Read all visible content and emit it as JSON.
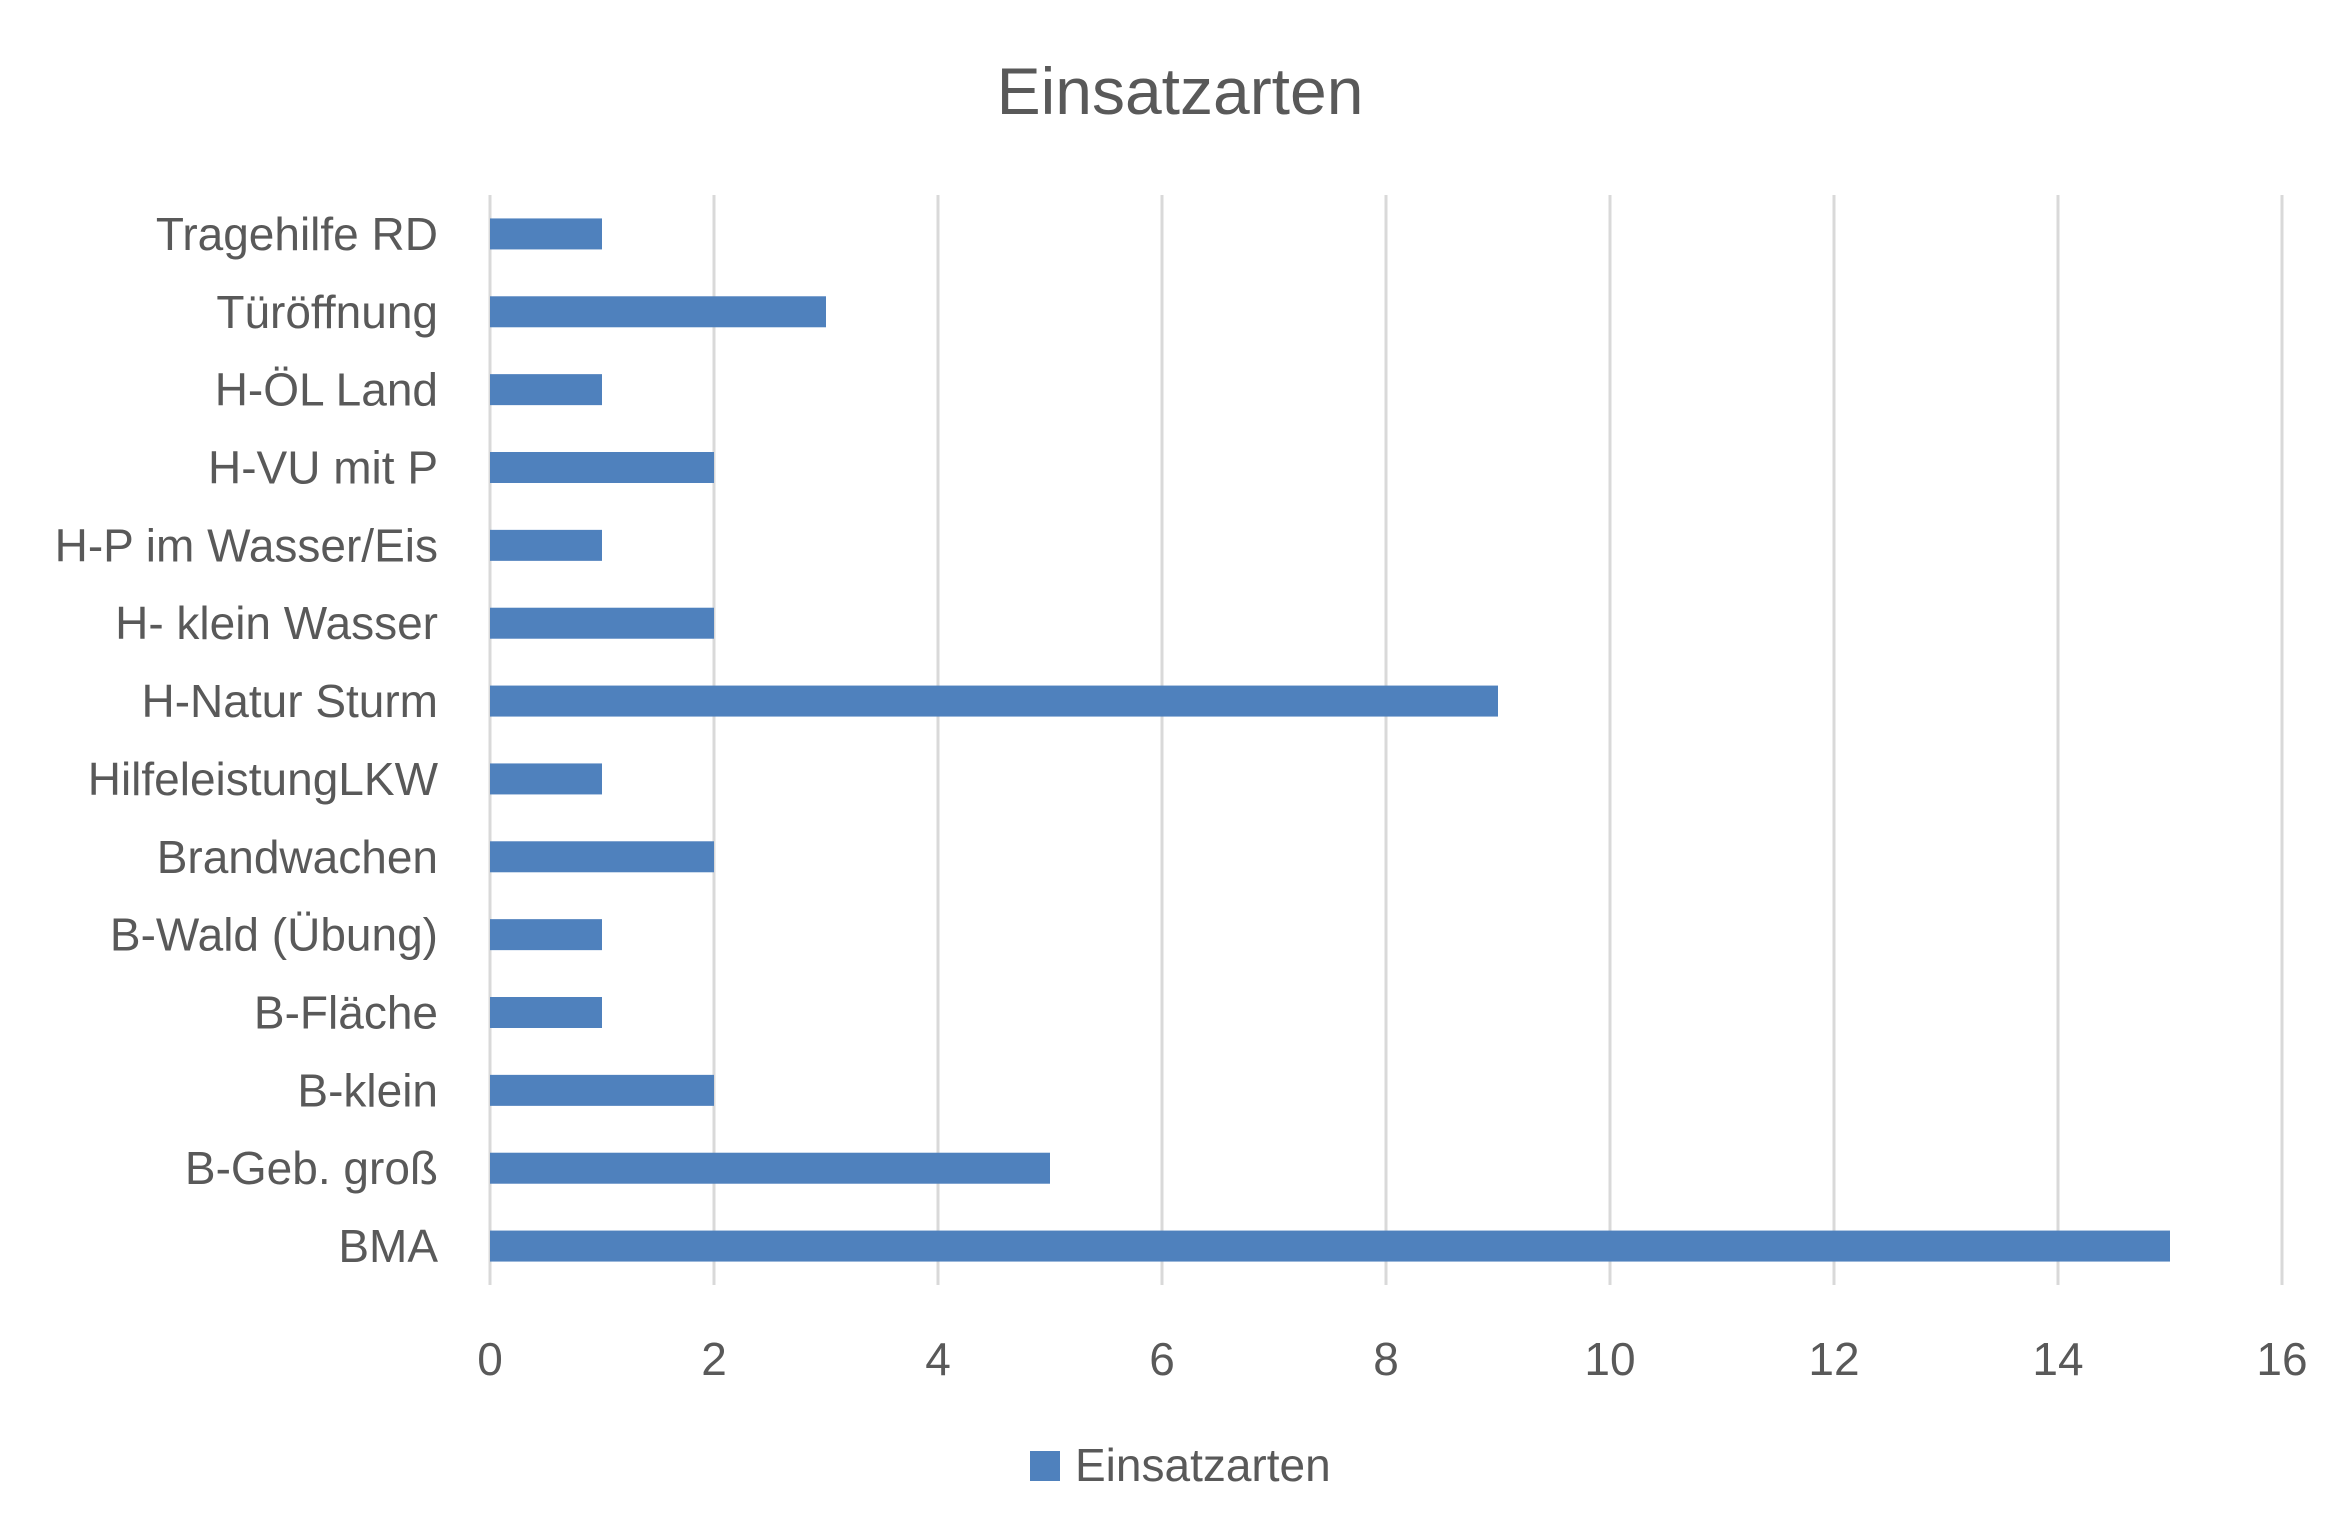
{
  "chart_data": {
    "type": "bar",
    "orientation": "horizontal",
    "title": "Einsatzarten",
    "categories": [
      "Tragehilfe RD",
      "Türöffnung",
      "H-ÖL Land",
      "H-VU mit P",
      "H-P im Wasser/Eis",
      "H- klein Wasser",
      "H-Natur Sturm",
      "HilfeleistungLKW",
      "Brandwachen",
      "B-Wald (Übung)",
      "B-Fläche",
      "B-klein",
      "B-Geb. groß",
      "BMA"
    ],
    "series": [
      {
        "name": "Einsatzarten",
        "values": [
          1,
          3,
          1,
          2,
          1,
          2,
          9,
          1,
          2,
          1,
          1,
          2,
          5,
          15
        ],
        "color": "#4f81bd"
      }
    ],
    "xlim": [
      0,
      16
    ],
    "xticks": [
      0,
      2,
      4,
      6,
      8,
      10,
      12,
      14,
      16
    ],
    "xlabel": "",
    "ylabel": "",
    "grid": "vertical",
    "legend": "bottom"
  }
}
